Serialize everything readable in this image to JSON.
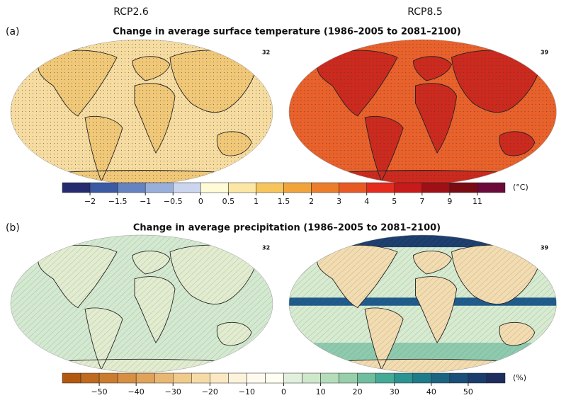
{
  "scenarios": [
    "RCP2.6",
    "RCP8.5"
  ],
  "panels": [
    {
      "label": "(a)",
      "title": "Change in average surface temperature (1986–2005 to 2081–2100)",
      "model_counts": [
        "32",
        "39"
      ],
      "colorbar": {
        "unit": "(°C)",
        "colors": [
          "#262a6e",
          "#3b5aa3",
          "#6583c0",
          "#98aedb",
          "#cbd5ee",
          "#fffbd7",
          "#fbe6a4",
          "#f6c65c",
          "#f0a43a",
          "#ec7d2a",
          "#e85a24",
          "#e52a1e",
          "#c8191b",
          "#9e1016",
          "#7a0b12",
          "#6b0a3a"
        ],
        "first_label_boundary": 1,
        "label_step": 1,
        "labels": [
          "−2",
          "−1.5",
          "−1",
          "−0.5",
          "0",
          "0.5",
          "1",
          "1.5",
          "2",
          "3",
          "4",
          "5",
          "7",
          "9",
          "11"
        ]
      },
      "maps": [
        {
          "ocean": "#f6dca0",
          "land": "#f0c878"
        },
        {
          "ocean": "#e9612b",
          "land": "#cc2a1e"
        }
      ]
    },
    {
      "label": "(b)",
      "title": "Change in average precipitation (1986–2005 to 2081–2100)",
      "model_counts": [
        "32",
        "39"
      ],
      "colorbar": {
        "unit": "(%)",
        "colors": [
          "#b3590f",
          "#bf6a1e",
          "#cc7c2f",
          "#d78f43",
          "#e0a359",
          "#e8b872",
          "#efcb8c",
          "#f5dba6",
          "#f9e8c1",
          "#fcf3db",
          "#fefbee",
          "#fffff2",
          "#e0f0dc",
          "#cfe8cc",
          "#b5ddbb",
          "#96cfaa",
          "#6fbea0",
          "#43aa96",
          "#2b9391",
          "#1e7b8a",
          "#1a6482",
          "#1a4f79",
          "#1b3d6d",
          "#1c2d5e"
        ],
        "first_label_boundary": 2,
        "label_step": 2,
        "labels": [
          "−50",
          "−40",
          "−30",
          "−20",
          "−10",
          "0",
          "10",
          "20",
          "30",
          "40",
          "50"
        ]
      },
      "maps": [
        {
          "ocean": "#d3e9d0",
          "land": "#e2eccf"
        },
        {
          "ocean": "#d6ebcf",
          "land": "#f2dcb0"
        }
      ]
    }
  ]
}
